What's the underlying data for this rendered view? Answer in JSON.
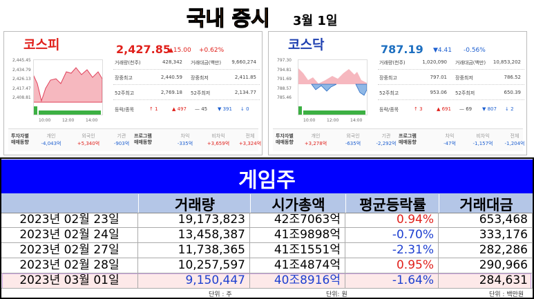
{
  "header": {
    "title": "국내 증시",
    "date": "3월 1일"
  },
  "markets": [
    {
      "name": "코스피",
      "price": "2,427.85",
      "change": "▲15.00",
      "rate": "+0.62%",
      "chart": {
        "yticks": [
          "2,445.45",
          "2,434.79",
          "2,426.13",
          "2,417.47",
          "2,408.81"
        ],
        "xticks": [
          "10:00",
          "12:00",
          "14:00"
        ]
      },
      "stats": [
        [
          "거래량(천주)",
          "428,342",
          "거래대금(백만)",
          "9,660,274"
        ],
        [
          "장중최고",
          "2,440.59",
          "장중최저",
          "2,411.85"
        ],
        [
          "52주최고",
          "2,769.18",
          "52주최저",
          "2,134.77"
        ]
      ],
      "breadth": {
        "label": "등락/종목",
        "items": [
          "↑ 1",
          "▲ 497",
          "— 45",
          "▼ 391",
          "↓ 0"
        ]
      },
      "investors": {
        "label": "투자자별\n매매동향",
        "items": [
          [
            "개인",
            "-4,043억"
          ],
          [
            "외국인",
            "+5,340억"
          ],
          [
            "기관",
            "-903억"
          ]
        ]
      },
      "program": {
        "label": "프로그램\n매매동향",
        "items": [
          [
            "차익",
            "-335억"
          ],
          [
            "비차익",
            "+3,659억"
          ],
          [
            "전체",
            "+3,324억"
          ]
        ]
      }
    },
    {
      "name": "코스닥",
      "price": "787.19",
      "change": "▼4.41",
      "rate": "-0.56%",
      "chart": {
        "yticks": [
          "797.30",
          "794.81",
          "791.69",
          "788.57",
          "785.46"
        ],
        "xticks": [
          "10:00",
          "12:00",
          "14:00"
        ]
      },
      "stats": [
        [
          "거래량(천주)",
          "1,020,090",
          "거래대금(백만)",
          "10,853,202"
        ],
        [
          "장중최고",
          "797.01",
          "장중최저",
          "786.52"
        ],
        [
          "52주최고",
          "953.06",
          "52주최저",
          "650.39"
        ]
      ],
      "breadth": {
        "label": "등락/종목",
        "items": [
          "↑ 3",
          "▲ 691",
          "— 69",
          "▼ 807",
          "↓ 2"
        ]
      },
      "investors": {
        "label": "투자자별\n매매동향",
        "items": [
          [
            "개인",
            "+3,278억"
          ],
          [
            "외국인",
            "-635억"
          ],
          [
            "기관",
            "-2,292억"
          ]
        ]
      },
      "program": {
        "label": "프로그램\n매매동향",
        "items": [
          [
            "차익",
            "-47억"
          ],
          [
            "비차익",
            "-1,157억"
          ],
          [
            "전체",
            "-1,204억"
          ]
        ]
      }
    }
  ],
  "table": {
    "title": "게임주",
    "columns": [
      "거래량",
      "시가총액",
      "평균등락률",
      "거래대금"
    ],
    "rows": [
      [
        "2023년 02월 23일",
        "19,173,823",
        "42조7063억",
        "0.94%",
        "653,468"
      ],
      [
        "2023년 02월 24일",
        "13,458,387",
        "41조9898억",
        "-0.70%",
        "333,176"
      ],
      [
        "2023년 02월 27일",
        "11,738,365",
        "41조1551억",
        "-2.31%",
        "282,286"
      ],
      [
        "2023년 02월 28일",
        "10,257,597",
        "41조4874억",
        "0.95%",
        "290,966"
      ],
      [
        "2023년 03월 01일",
        "9,150,447",
        "40조8916억",
        "-1.64%",
        "284,631"
      ]
    ],
    "units": [
      "단위 : 주",
      "단위: 원",
      "단위 : 백만원"
    ]
  }
}
